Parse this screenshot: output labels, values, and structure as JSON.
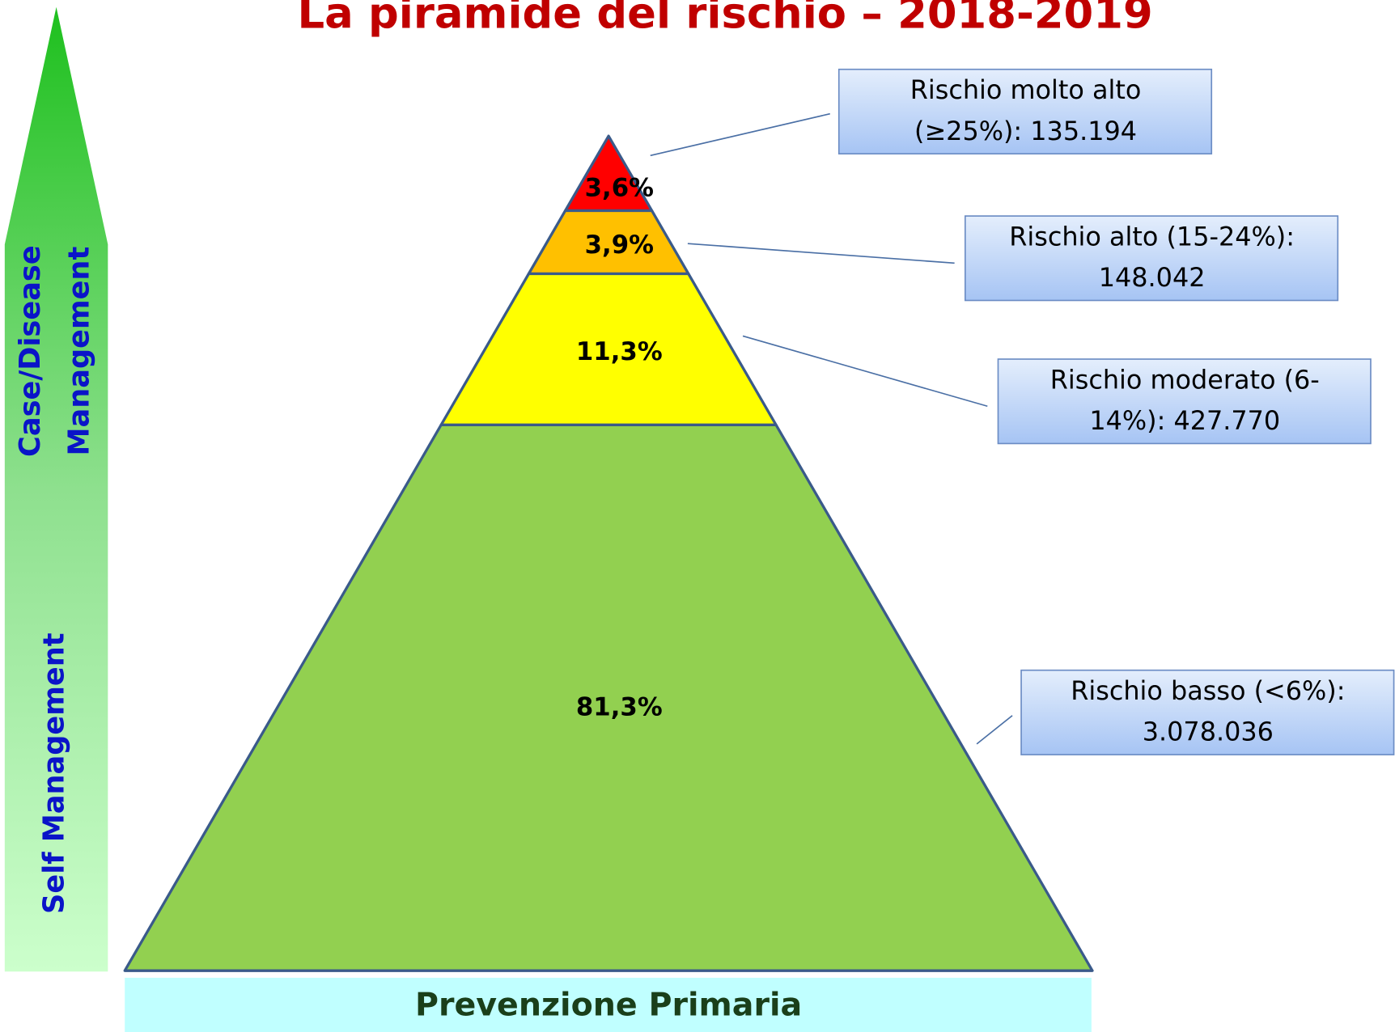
{
  "title": "La piramide del rischio – 2018-2019",
  "arrow": {
    "top_lines": [
      "Case/Disease",
      "Management"
    ],
    "bottom_label": "Self Management"
  },
  "pyramid": {
    "levels": [
      {
        "percent": "3,6%",
        "color": "#ff0000"
      },
      {
        "percent": "3,9%",
        "color": "#ffc000"
      },
      {
        "percent": "11,3%",
        "color": "#ffff00"
      },
      {
        "percent": "81,3%",
        "color": "#92d050"
      }
    ]
  },
  "boxes": [
    {
      "lines": [
        "Rischio molto alto",
        "(≥25%): 135.194"
      ]
    },
    {
      "lines": [
        "Rischio alto (15-24%):",
        "148.042"
      ]
    },
    {
      "lines": [
        "Rischio moderato (6-",
        "14%): 427.770"
      ]
    },
    {
      "lines": [
        "Rischio basso (<6%):",
        "3.078.036"
      ]
    }
  ],
  "footer": "Prevenzione Primaria"
}
